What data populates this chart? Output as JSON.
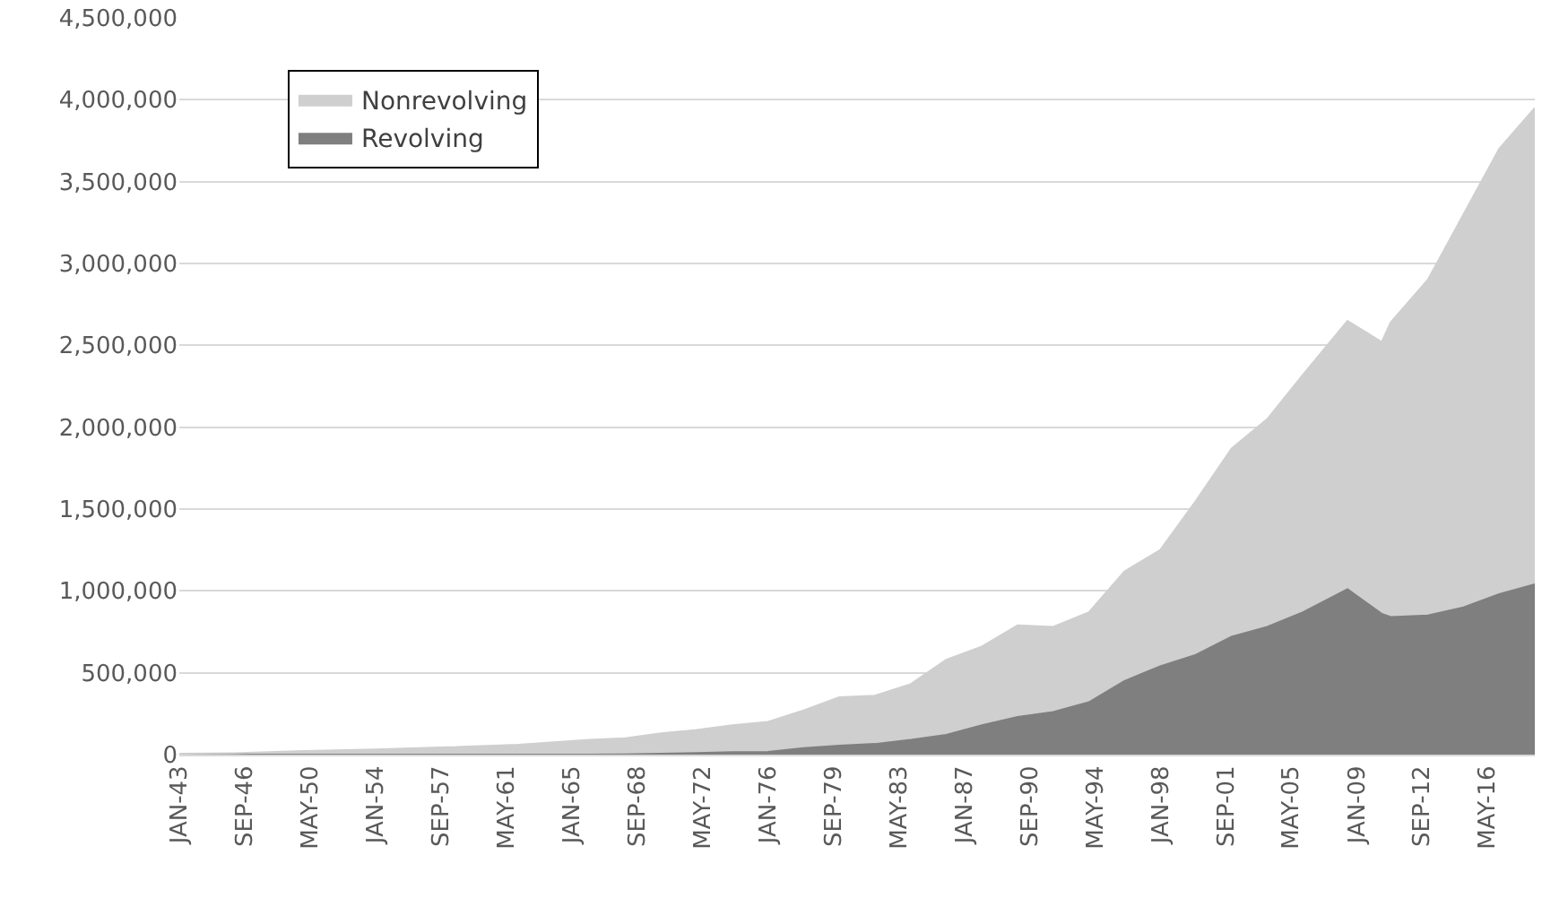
{
  "chart_data": {
    "type": "area",
    "stacked": true,
    "x": [
      "1943-01",
      "1946-01",
      "1950-01",
      "1954-01",
      "1958-01",
      "1962-01",
      "1966-01",
      "1968-01",
      "1970-01",
      "1972-01",
      "1974-01",
      "1976-01",
      "1978-01",
      "1980-01",
      "1982-01",
      "1984-01",
      "1986-01",
      "1988-01",
      "1990-01",
      "1992-01",
      "1994-01",
      "1996-01",
      "1998-01",
      "2000-01",
      "2002-01",
      "2004-01",
      "2006-01",
      "2008-07",
      "2010-06",
      "2010-12",
      "2013-01",
      "2015-01",
      "2017-01",
      "2019-01"
    ],
    "series": [
      {
        "name": "Revolving",
        "color": "#7f7f7f",
        "values": [
          0,
          0,
          0,
          0,
          0,
          0,
          0,
          2000,
          5000,
          10000,
          15000,
          17000,
          40000,
          55000,
          65000,
          90000,
          120000,
          180000,
          230000,
          260000,
          320000,
          450000,
          540000,
          610000,
          720000,
          780000,
          870000,
          1010000,
          860000,
          840000,
          850000,
          900000,
          980000,
          1040000
        ]
      },
      {
        "name": "Nonrevolving",
        "color": "#cfcfcf",
        "values": [
          6000,
          8000,
          22000,
          32000,
          45000,
          60000,
          90000,
          98000,
          125000,
          140000,
          165000,
          183000,
          230000,
          295000,
          295000,
          340000,
          460000,
          480000,
          560000,
          520000,
          550000,
          670000,
          710000,
          940000,
          1150000,
          1270000,
          1450000,
          1640000,
          1660000,
          1800000,
          2050000,
          2400000,
          2720000,
          2910000
        ]
      }
    ],
    "xlim": [
      "1943-01",
      "2019-01"
    ],
    "xticks": [
      {
        "value": "1943-01",
        "label": "JAN-43"
      },
      {
        "value": "1946-09",
        "label": "SEP-46"
      },
      {
        "value": "1950-05",
        "label": "MAY-50"
      },
      {
        "value": "1954-01",
        "label": "JAN-54"
      },
      {
        "value": "1957-09",
        "label": "SEP-57"
      },
      {
        "value": "1961-05",
        "label": "MAY-61"
      },
      {
        "value": "1965-01",
        "label": "JAN-65"
      },
      {
        "value": "1968-09",
        "label": "SEP-68"
      },
      {
        "value": "1972-05",
        "label": "MAY-72"
      },
      {
        "value": "1976-01",
        "label": "JAN-76"
      },
      {
        "value": "1979-09",
        "label": "SEP-79"
      },
      {
        "value": "1983-05",
        "label": "MAY-83"
      },
      {
        "value": "1987-01",
        "label": "JAN-87"
      },
      {
        "value": "1990-09",
        "label": "SEP-90"
      },
      {
        "value": "1994-05",
        "label": "MAY-94"
      },
      {
        "value": "1998-01",
        "label": "JAN-98"
      },
      {
        "value": "2001-09",
        "label": "SEP-01"
      },
      {
        "value": "2005-05",
        "label": "MAY-05"
      },
      {
        "value": "2009-01",
        "label": "JAN-09"
      },
      {
        "value": "2012-09",
        "label": "SEP-12"
      },
      {
        "value": "2016-05",
        "label": "MAY-16"
      }
    ],
    "ylim": [
      0,
      4500000
    ],
    "yticks": [
      {
        "value": 0,
        "label": "0"
      },
      {
        "value": 500000,
        "label": "500,000"
      },
      {
        "value": 1000000,
        "label": "1,000,000"
      },
      {
        "value": 1500000,
        "label": "1,500,000"
      },
      {
        "value": 2000000,
        "label": "2,000,000"
      },
      {
        "value": 2500000,
        "label": "2,500,000"
      },
      {
        "value": 3000000,
        "label": "3,000,000"
      },
      {
        "value": 3500000,
        "label": "3,500,000"
      },
      {
        "value": 4000000,
        "label": "4,000,000"
      },
      {
        "value": 4500000,
        "label": "4,500,000"
      }
    ],
    "grid": "y",
    "legend": "top left"
  }
}
